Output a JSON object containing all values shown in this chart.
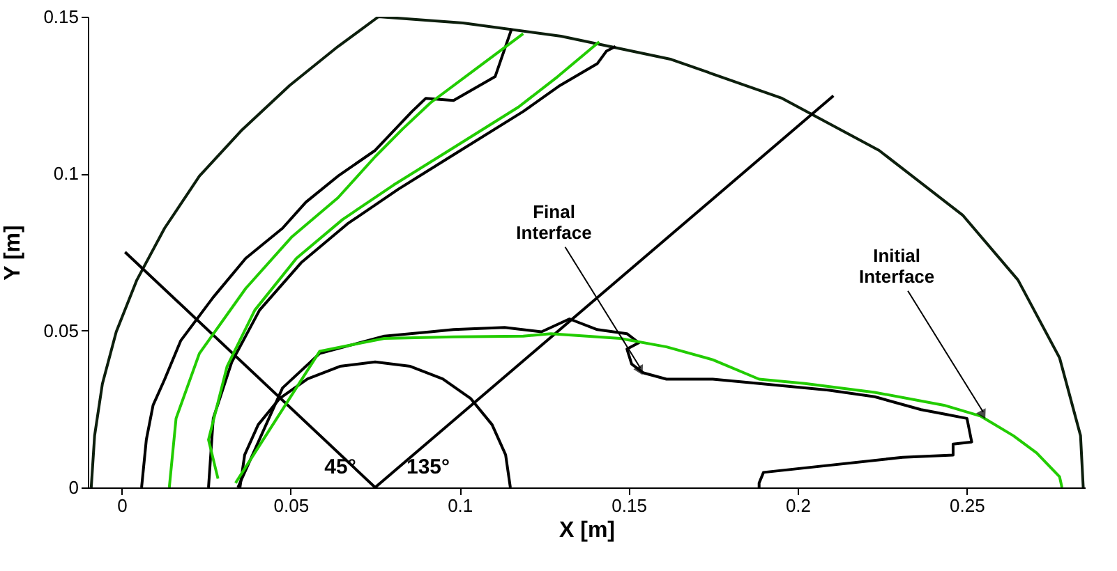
{
  "chart_data": {
    "type": "line",
    "xlabel": "X [m]",
    "ylabel": "Y [m]",
    "xlim": [
      -0.01,
      0.285
    ],
    "ylim": [
      0,
      0.15
    ],
    "xticks": [
      0,
      0.05,
      0.1,
      0.15,
      0.2,
      0.25
    ],
    "yticks": [
      0,
      0.05,
      0.1,
      0.15
    ],
    "grid": false,
    "marker": "none",
    "line_style": "solid",
    "series": [
      {
        "color": "#0d1f0d",
        "x": [
          -0.009,
          -0.008,
          -0.0057,
          -0.0016,
          0.0045,
          0.0127,
          0.023,
          0.0353,
          0.0497,
          0.064,
          0.076,
          0.101,
          0.13,
          0.1626,
          0.1954,
          0.2241,
          0.2488,
          0.2652,
          0.2775,
          0.2837,
          0.2845
        ],
        "values": [
          0,
          0.0165,
          0.033,
          0.0496,
          0.0661,
          0.0826,
          0.0992,
          0.1136,
          0.1281,
          0.1405,
          0.15,
          0.148,
          0.1438,
          0.1364,
          0.124,
          0.1074,
          0.0868,
          0.0661,
          0.0413,
          0.0165,
          0
        ]
      },
      {
        "color": "#000000",
        "x": [
          0.115,
          0.1136,
          0.1096,
          0.1033,
          0.095,
          0.0854,
          0.075,
          0.0646,
          0.055,
          0.0467,
          0.0404,
          0.0364,
          0.035
        ],
        "values": [
          0,
          0.0104,
          0.02,
          0.0283,
          0.0346,
          0.0386,
          0.04,
          0.0386,
          0.0346,
          0.0283,
          0.02,
          0.0104,
          0
        ]
      },
      {
        "color": "#000000",
        "x": [
          0.001,
          0.075
        ],
        "values": [
          0.075,
          0
        ]
      },
      {
        "color": "#000000",
        "x": [
          0.075,
          0.2106
        ],
        "values": [
          0,
          0.1248
        ]
      },
      {
        "color": "#000000",
        "x": [
          0.0059,
          0.0073,
          0.0093,
          0.0127,
          0.0175,
          0.0271,
          0.0367,
          0.0476,
          0.0545,
          0.064,
          0.075,
          0.0859,
          0.09,
          0.0982,
          0.1105,
          0.1154
        ],
        "values": [
          0,
          0.0152,
          0.0262,
          0.0344,
          0.0468,
          0.0606,
          0.073,
          0.0826,
          0.0909,
          0.0992,
          0.1074,
          0.1198,
          0.124,
          0.1233,
          0.1309,
          0.1462
        ]
      },
      {
        "color": "#22cc00",
        "x": [
          0.0141,
          0.0161,
          0.023,
          0.0367,
          0.0504,
          0.064,
          0.075,
          0.0832,
          0.0914,
          0.1051,
          0.1188
        ],
        "values": [
          0,
          0.022,
          0.0427,
          0.0634,
          0.0799,
          0.0923,
          0.1054,
          0.1143,
          0.1226,
          0.1336,
          0.1446
        ]
      },
      {
        "color": "#000000",
        "x": [
          0.0257,
          0.0271,
          0.0326,
          0.0408,
          0.0531,
          0.0668,
          0.0818,
          0.0982,
          0.1188,
          0.1297,
          0.1407,
          0.1434,
          0.1461
        ],
        "values": [
          0,
          0.022,
          0.04,
          0.0565,
          0.0716,
          0.084,
          0.095,
          0.106,
          0.1198,
          0.1281,
          0.135,
          0.139,
          0.1405
        ]
      },
      {
        "color": "#22cc00",
        "x": [
          0.0285,
          0.0257,
          0.0312,
          0.0394,
          0.0517,
          0.0654,
          0.0805,
          0.0969,
          0.1174,
          0.129,
          0.1413
        ],
        "values": [
          0.0028,
          0.0152,
          0.0386,
          0.0565,
          0.073,
          0.0854,
          0.0964,
          0.1074,
          0.1212,
          0.1309,
          0.142
        ]
      },
      {
        "color": "#000000",
        "x": [
          0.0344,
          0.0476,
          0.0586,
          0.0777,
          0.0914,
          0.0982,
          0.1133,
          0.1242,
          0.1325,
          0.1407,
          0.1495,
          0.153,
          0.1495,
          0.1509,
          0.1544,
          0.1612,
          0.1749,
          0.1886,
          0.2091,
          0.2228,
          0.2365,
          0.2433,
          0.2501,
          0.2515,
          0.246,
          0.246,
          0.231,
          0.1899,
          0.1886,
          0.1886
        ],
        "values": [
          0,
          0.0317,
          0.0427,
          0.0482,
          0.0496,
          0.0503,
          0.051,
          0.0496,
          0.0537,
          0.0503,
          0.049,
          0.0461,
          0.0441,
          0.0393,
          0.0365,
          0.0345,
          0.0345,
          0.0331,
          0.031,
          0.0289,
          0.0248,
          0.0234,
          0.022,
          0.0145,
          0.0138,
          0.0103,
          0.0096,
          0.0048,
          0.0014,
          0
        ]
      },
      {
        "color": "#22cc00",
        "x": [
          0.0337,
          0.0586,
          0.0777,
          0.0982,
          0.1188,
          0.127,
          0.1475,
          0.1612,
          0.1749,
          0.1886,
          0.2022,
          0.2228,
          0.2433,
          0.2542,
          0.2638,
          0.2707,
          0.2775,
          0.2782
        ],
        "values": [
          0.0014,
          0.0434,
          0.0475,
          0.048,
          0.0482,
          0.049,
          0.0475,
          0.0448,
          0.0407,
          0.0345,
          0.0331,
          0.0303,
          0.0262,
          0.0227,
          0.0165,
          0.011,
          0.0034,
          0
        ]
      }
    ],
    "annotations": [
      "45°",
      "135°",
      {
        "text": "Final Interface",
        "x": 0.1535,
        "y": 0.038
      },
      {
        "text": "Initial Interface",
        "x": 0.2549,
        "y": 0.024
      }
    ]
  }
}
